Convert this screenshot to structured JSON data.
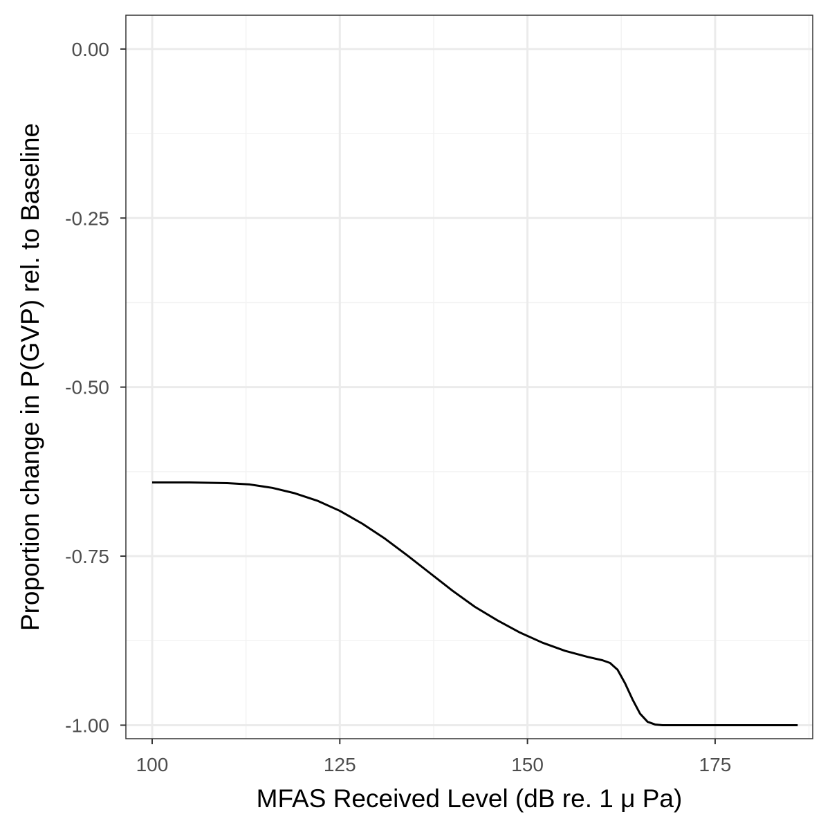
{
  "chart_data": {
    "type": "line",
    "title": "",
    "xlabel": "MFAS Received Level (dB re. 1 μ Pa)",
    "ylabel": "Proportion change in P(GVP) rel. to Baseline",
    "xlim": [
      96.5,
      188
    ],
    "ylim": [
      -1.02,
      0.05
    ],
    "x_ticks": [
      100,
      125,
      150,
      175
    ],
    "x_tick_labels": [
      "100",
      "125",
      "150",
      "175"
    ],
    "x_minor_ticks": [
      112.5,
      137.5,
      162.5,
      187.5
    ],
    "y_ticks": [
      0,
      -0.25,
      -0.5,
      -0.75,
      -1.0
    ],
    "y_tick_labels": [
      "0.00",
      "-0.25",
      "-0.50",
      "-0.75",
      "-1.00"
    ],
    "y_minor_ticks": [
      -0.125,
      -0.375,
      -0.625,
      -0.875
    ],
    "grid": true,
    "legend": "none",
    "series": [
      {
        "color": "#000000",
        "x": [
          100,
          105,
          110,
          113,
          116,
          119,
          122,
          125,
          128,
          131,
          134,
          137,
          140,
          143,
          146,
          149,
          152,
          155,
          158,
          160,
          161,
          162,
          163,
          164,
          165,
          166,
          167,
          168,
          170,
          175,
          180,
          186
        ],
        "y": [
          -0.641,
          -0.641,
          -0.642,
          -0.644,
          -0.649,
          -0.657,
          -0.668,
          -0.683,
          -0.702,
          -0.724,
          -0.749,
          -0.775,
          -0.801,
          -0.825,
          -0.845,
          -0.863,
          -0.878,
          -0.89,
          -0.899,
          -0.904,
          -0.908,
          -0.918,
          -0.938,
          -0.962,
          -0.983,
          -0.995,
          -0.999,
          -1.0,
          -1.0,
          -1.0,
          -1.0,
          -1.0
        ]
      }
    ]
  },
  "colors": {
    "background": "#ffffff",
    "panel_border": "#333333",
    "grid_major": "#ebebeb",
    "grid_minor": "#f3f3f3",
    "line": "#000000",
    "tick_text": "#4d4d4d",
    "axis_title": "#000000"
  }
}
